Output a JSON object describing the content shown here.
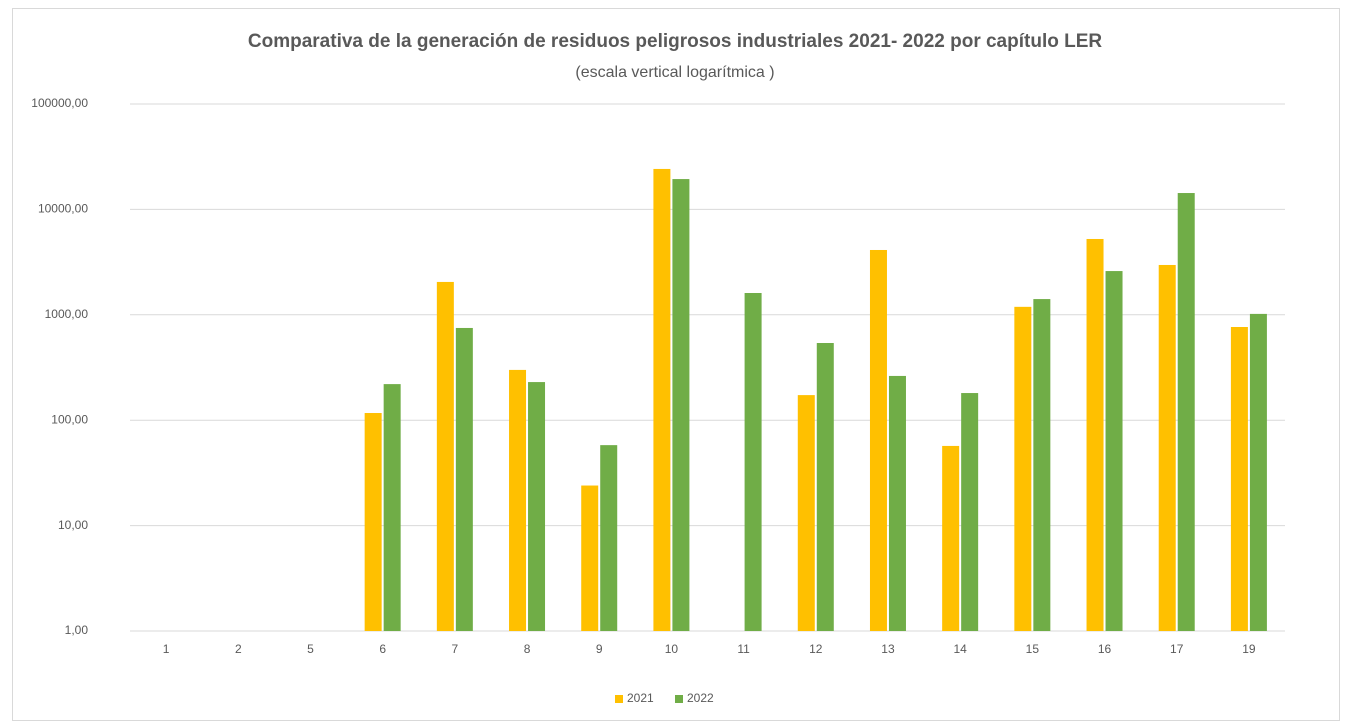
{
  "chart_data": {
    "type": "bar",
    "title": "Comparativa de la generación de residuos peligrosos industriales  2021- 2022 por capítulo LER",
    "subtitle": "(escala vertical logarítmica )",
    "categories": [
      "1",
      "2",
      "5",
      "6",
      "7",
      "8",
      "9",
      "10",
      "11",
      "12",
      "13",
      "14",
      "15",
      "16",
      "17",
      "19"
    ],
    "series": [
      {
        "name": "2021",
        "color": "#ffc000",
        "values": [
          null,
          null,
          null,
          117,
          2050,
          300,
          24,
          24200,
          null,
          173,
          4120,
          57,
          1190,
          5240,
          2970,
          766
        ]
      },
      {
        "name": "2022",
        "color": "#70ad47",
        "values": [
          null,
          null,
          null,
          220,
          750,
          230,
          58,
          19400,
          1610,
          540,
          263,
          181,
          1410,
          2600,
          14300,
          1020
        ]
      }
    ],
    "yscale": "log",
    "ylim": [
      1,
      100000
    ],
    "yticks": [
      {
        "value": 1,
        "label": "1,00"
      },
      {
        "value": 10,
        "label": "10,00"
      },
      {
        "value": 100,
        "label": "100,00"
      },
      {
        "value": 1000,
        "label": "1000,00"
      },
      {
        "value": 10000,
        "label": "10000,00"
      },
      {
        "value": 100000,
        "label": "100000,00"
      }
    ],
    "grid": true,
    "legend": "bottom"
  }
}
